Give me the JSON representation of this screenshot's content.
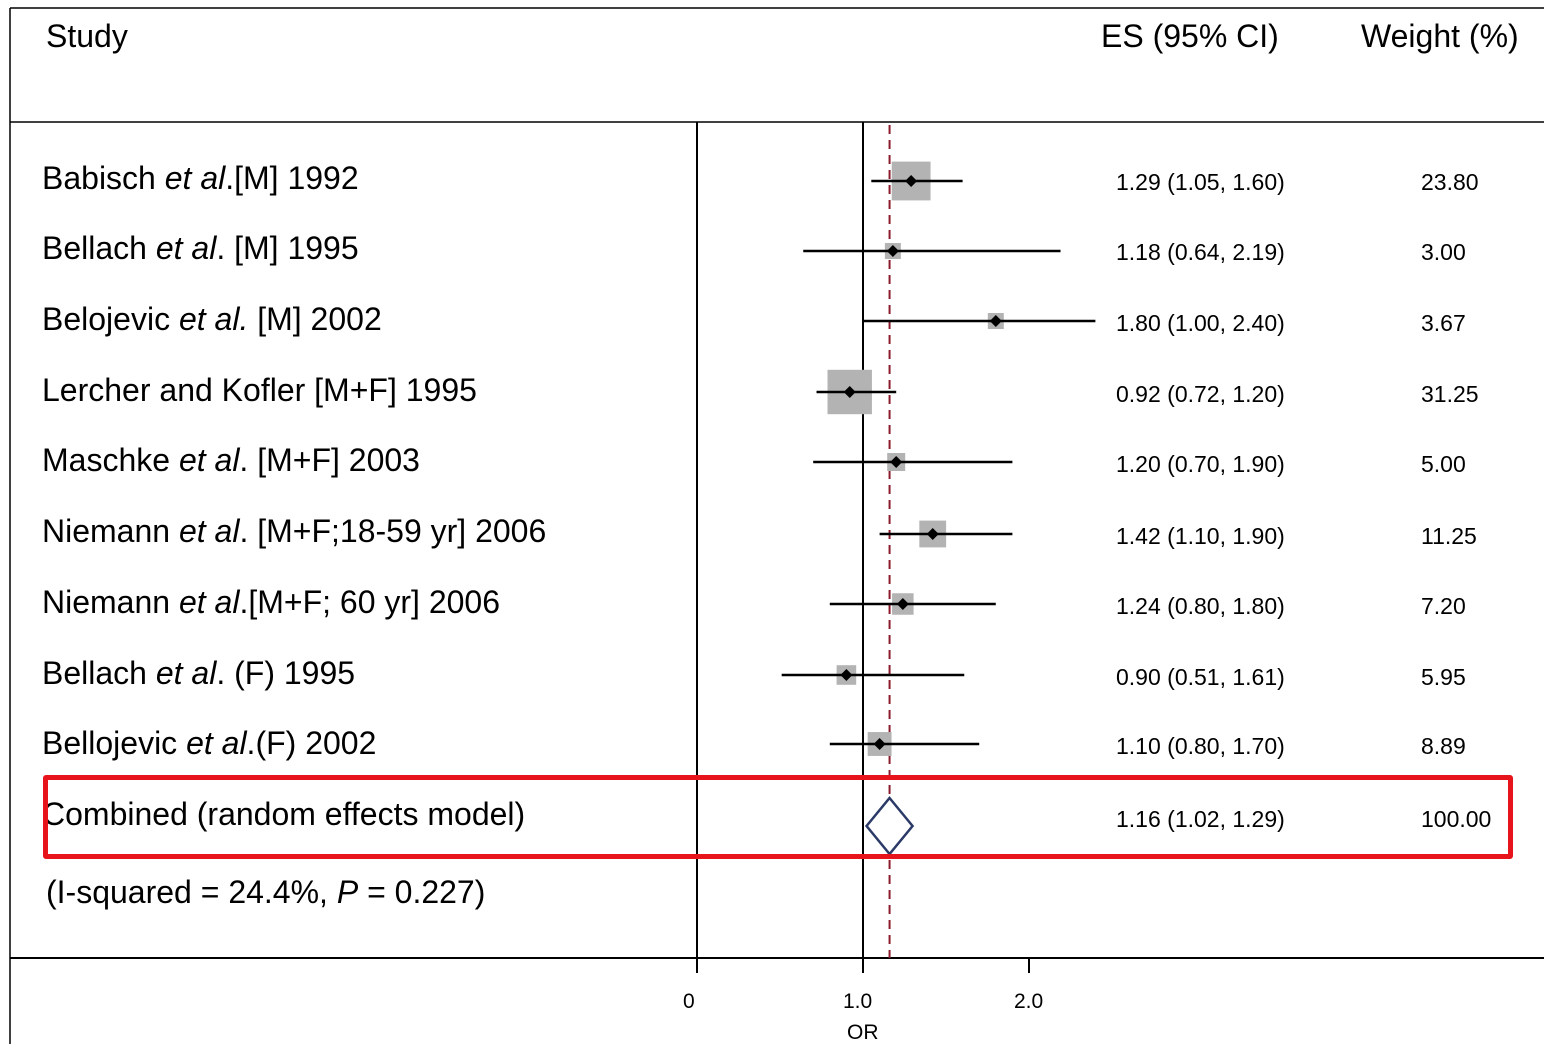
{
  "header": {
    "study_label": "Study",
    "es_label": "ES (95% CI)",
    "weight_label": "Weight (%)"
  },
  "studies": [
    {
      "pre": "Babisch ",
      "etal": "et al",
      "post": ".[M] 1992",
      "es_text": "1.29 (1.05, 1.60)",
      "weight_text": "23.80"
    },
    {
      "pre": "Bellach ",
      "etal": "et al",
      "post": ". [M] 1995",
      "es_text": "1.18 (0.64, 2.19)",
      "weight_text": "3.00"
    },
    {
      "pre": "Belojevic ",
      "etal": "et al.",
      "post": " [M] 2002",
      "es_text": "1.80 (1.00, 2.40)",
      "weight_text": "3.67"
    },
    {
      "pre": "Lercher and Kofler [M+F] 1995",
      "etal": "",
      "post": "",
      "es_text": "0.92 (0.72, 1.20)",
      "weight_text": "31.25"
    },
    {
      "pre": "Maschke ",
      "etal": "et al",
      "post": ". [M+F] 2003",
      "es_text": "1.20 (0.70, 1.90)",
      "weight_text": "5.00"
    },
    {
      "pre": "Niemann ",
      "etal": "et al",
      "post": ". [M+F;18-59 yr] 2006",
      "es_text": "1.42 (1.10, 1.90)",
      "weight_text": "11.25"
    },
    {
      "pre": "Niemann ",
      "etal": "et al",
      "post": ".[M+F; 60 yr] 2006",
      "es_text": "1.24 (0.80, 1.80)",
      "weight_text": "7.20"
    },
    {
      "pre": "Bellach ",
      "etal": "et al",
      "post": ". (F) 1995",
      "es_text": "0.90 (0.51, 1.61)",
      "weight_text": "5.95"
    },
    {
      "pre": "Bellojevic ",
      "etal": "et al",
      "post": ".(F) 2002",
      "es_text": "1.10 (0.80, 1.70)",
      "weight_text": "8.89"
    }
  ],
  "combined": {
    "label": "Combined (random effects model)",
    "es_text": "1.16 (1.02, 1.29)",
    "weight_text": "100.00"
  },
  "heterogeneity": {
    "pre": "(I-squared = 24.4%, ",
    "p_label": "P",
    "post": " = 0.227)"
  },
  "axis": {
    "ticks": [
      "0",
      "1.0",
      "2.0"
    ],
    "label": "OR"
  },
  "colors": {
    "weight_box": "#b3b3b3",
    "summary_diamond": "#2b3a67",
    "pooled_line": "#8b1a2b",
    "highlight_box": "#e8141b"
  },
  "chart_data": {
    "type": "forest",
    "x_scale": "linear",
    "xlabel": "OR",
    "xlim": [
      0,
      2.5
    ],
    "reference_line": 1.0,
    "pooled_line": 1.16,
    "studies": [
      {
        "est": 1.29,
        "lo": 1.05,
        "hi": 1.6,
        "weight": 23.8
      },
      {
        "est": 1.18,
        "lo": 0.64,
        "hi": 2.19,
        "weight": 3.0
      },
      {
        "est": 1.8,
        "lo": 1.0,
        "hi": 2.4,
        "weight": 3.67
      },
      {
        "est": 0.92,
        "lo": 0.72,
        "hi": 1.2,
        "weight": 31.25
      },
      {
        "est": 1.2,
        "lo": 0.7,
        "hi": 1.9,
        "weight": 5.0
      },
      {
        "est": 1.42,
        "lo": 1.1,
        "hi": 1.9,
        "weight": 11.25
      },
      {
        "est": 1.24,
        "lo": 0.8,
        "hi": 1.8,
        "weight": 7.2
      },
      {
        "est": 0.9,
        "lo": 0.51,
        "hi": 1.61,
        "weight": 5.95
      },
      {
        "est": 1.1,
        "lo": 0.8,
        "hi": 1.7,
        "weight": 8.89
      }
    ],
    "combined": {
      "est": 1.16,
      "lo": 1.02,
      "hi": 1.29,
      "weight": 100.0
    }
  }
}
